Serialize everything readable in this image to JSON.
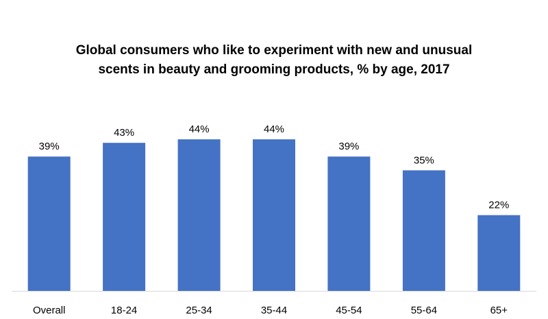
{
  "chart_data": {
    "type": "bar",
    "title_line1": "Global consumers who like to experiment with new and unusual",
    "title_line2": "scents in beauty and grooming products, % by age, 2017",
    "categories": [
      "Overall",
      "18-24",
      "25-34",
      "35-44",
      "45-54",
      "55-64",
      "65+"
    ],
    "values": [
      39,
      43,
      44,
      44,
      39,
      35,
      22
    ],
    "data_labels": [
      "39%",
      "43%",
      "44%",
      "44%",
      "39%",
      "35%",
      "22%"
    ],
    "ylim": [
      0,
      51
    ],
    "grid": false,
    "legend": "none",
    "bar_color": "#4472C4",
    "axis_color": "#D9D9D9"
  }
}
